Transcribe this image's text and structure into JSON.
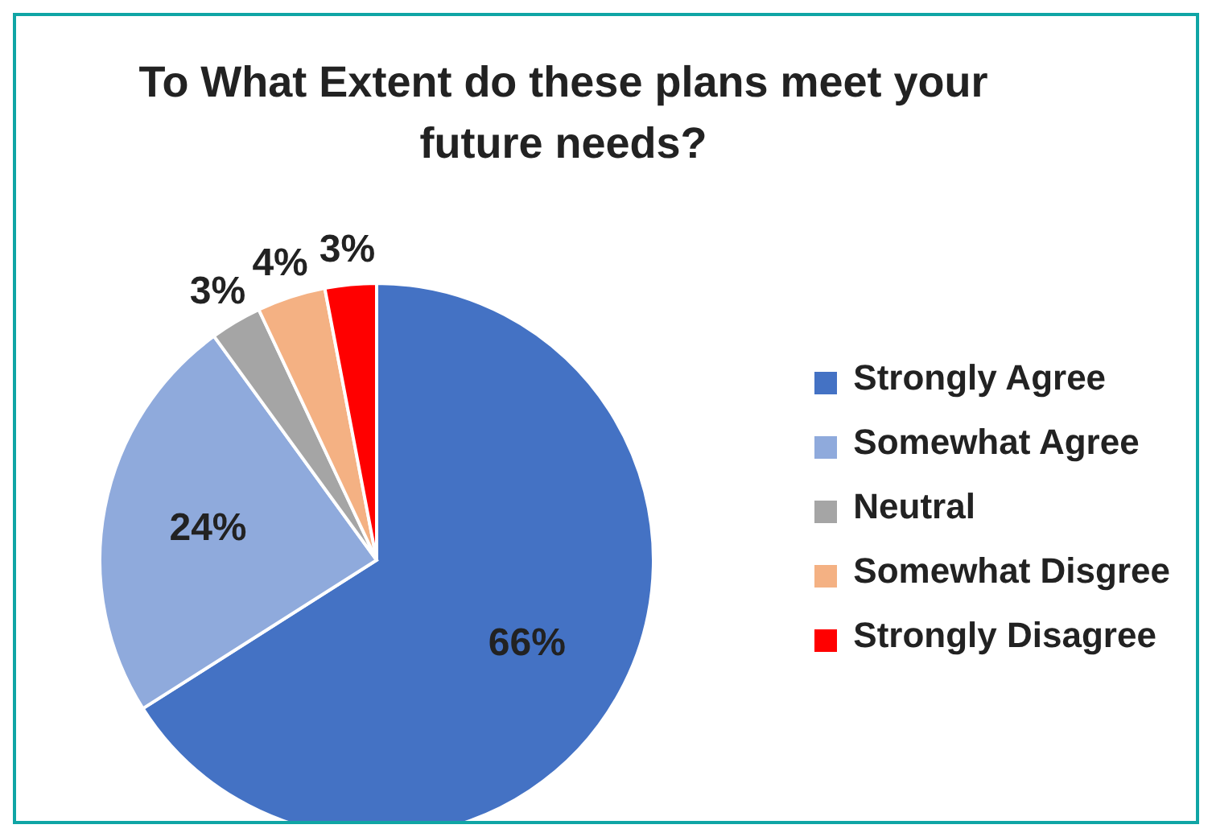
{
  "chart_data": {
    "type": "pie",
    "title": "To What Extent do these plans meet your future needs?",
    "categories": [
      "Strongly Agree",
      "Somewhat Agree",
      "Neutral",
      "Somewhat Disgree",
      "Strongly Disagree"
    ],
    "values": [
      66,
      24,
      3,
      4,
      3
    ],
    "colors": [
      "#4472c4",
      "#8faadc",
      "#a5a5a5",
      "#f4b183",
      "#ff0000"
    ],
    "value_labels": [
      "66%",
      "24%",
      "3%",
      "4%",
      "3%"
    ],
    "legend": "right"
  }
}
